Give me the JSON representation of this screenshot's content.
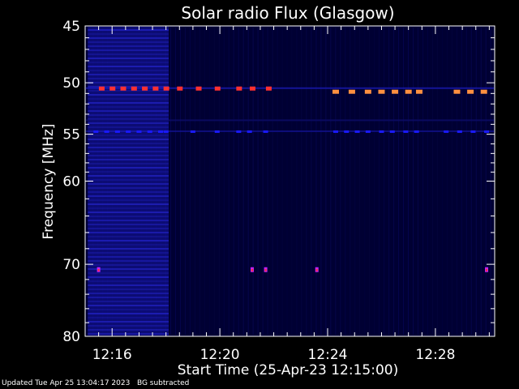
{
  "chart_data": {
    "type": "heatmap",
    "title": "Solar radio Flux (Glasgow)",
    "xlabel": "Start Time (25-Apr-23 12:15:00)",
    "ylabel": "Frequency [MHz]",
    "y_scale": "log",
    "y_reversed": true,
    "ylim": [
      45,
      80
    ],
    "xlim_minutes": [
      15.0,
      30.2
    ],
    "y_ticks": [
      {
        "value": 45,
        "label": "45"
      },
      {
        "value": 50,
        "label": "50"
      },
      {
        "value": 55,
        "label": "55"
      },
      {
        "value": 60,
        "label": "60"
      },
      {
        "value": 70,
        "label": "70"
      },
      {
        "value": 80,
        "label": "80"
      }
    ],
    "x_ticks": [
      {
        "value": 16,
        "label": "12:16"
      },
      {
        "value": 20,
        "label": "12:20"
      },
      {
        "value": 24,
        "label": "12:24"
      },
      {
        "value": 28,
        "label": "12:28"
      }
    ],
    "features": {
      "broadband_emission_minutes": [
        15.1,
        18.1
      ],
      "bursts_50_5MHz_minutes": [
        15.6,
        16.0,
        16.4,
        16.8,
        17.2,
        17.6,
        18.0,
        18.5,
        19.2,
        19.9,
        20.7,
        21.2,
        21.8
      ],
      "bursts_50_8MHz_minutes": [
        24.3,
        24.9,
        25.5,
        26.0,
        26.5,
        27.0,
        27.4,
        28.8,
        29.3,
        29.8
      ],
      "bursts_54_7MHz_minutes": [
        15.4,
        15.8,
        16.2,
        16.6,
        17.0,
        17.4,
        17.8,
        18.0,
        19.0,
        19.9,
        20.7,
        21.1,
        21.7,
        24.3,
        24.7,
        25.1,
        25.5,
        26.0,
        26.4,
        26.9,
        27.3,
        28.4,
        28.9,
        29.4,
        29.9
      ],
      "bursts_70_7MHz_minutes": [
        15.5,
        21.2,
        21.7,
        23.6,
        29.9
      ]
    },
    "colors": {
      "background": "#000000",
      "low": "#000033",
      "mid": "#1a1aff",
      "high": "#ff3030",
      "peak": "#ff9040"
    }
  },
  "footer": {
    "updated": "Updated Tue Apr 25 13:04:17 2023",
    "note": "BG subtracted"
  }
}
